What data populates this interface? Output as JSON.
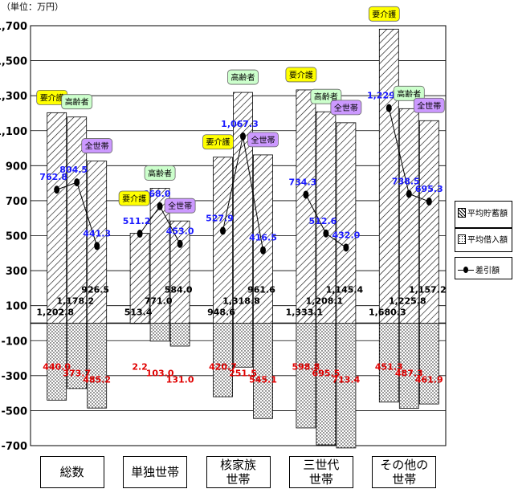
{
  "unit_label": "（単位：万円）",
  "legend": {
    "savings": "平均貯蓄額",
    "debt": "平均借入額",
    "diff": "差引額"
  },
  "chart_data": {
    "type": "bar",
    "ylim": [
      -700,
      1700
    ],
    "yticks": [
      "1,700",
      "1,500",
      "1,300",
      "1,100",
      "900",
      "700",
      "500",
      "300",
      "100",
      "-100",
      "-300",
      "-500",
      "-700"
    ],
    "categories": [
      "総数",
      "単独世帯",
      "核家族世帯",
      "三世代世帯",
      "その他の世帯"
    ],
    "category_lines": [
      [
        "総数"
      ],
      [
        "単独世帯"
      ],
      [
        "核家族",
        "世帯"
      ],
      [
        "三世代",
        "世帯"
      ],
      [
        "その他の",
        "世帯"
      ]
    ],
    "groups": [
      {
        "category": "総数",
        "bars": [
          {
            "label": "要介護",
            "savings": 1202.8,
            "debt": 440.0,
            "diff": 762.8,
            "savings_label": "1,202.8",
            "debt_label": "440.0",
            "diff_label": "762.8"
          },
          {
            "label": "高齢者",
            "savings": 1178.2,
            "debt": 373.7,
            "diff": 804.5,
            "savings_label": "1,178.2",
            "debt_label": "373.7",
            "diff_label": "804.5"
          },
          {
            "label": "全世帯",
            "savings": 926.5,
            "debt": 485.2,
            "diff": 441.3,
            "savings_label": "926.5",
            "debt_label": "485.2",
            "diff_label": "441.3"
          }
        ]
      },
      {
        "category": "単独世帯",
        "bars": [
          {
            "label": "",
            "savings": 513.4,
            "debt": 2.2,
            "diff": 511.2,
            "savings_label": "513.4",
            "debt_label": "2.2",
            "diff_label": "511.2"
          },
          {
            "label": "高齢者",
            "savings": 771.0,
            "debt": 103.0,
            "diff": 668.0,
            "savings_label": "771.0",
            "debt_label": "103.0",
            "diff_label": "668.0"
          },
          {
            "label": "全世帯",
            "savings": 584.0,
            "debt": 131.0,
            "diff": 453.0,
            "savings_label": "584.0",
            "debt_label": "131.0",
            "diff_label": "453.0"
          }
        ]
      },
      {
        "category": "核家族世帯",
        "bars": [
          {
            "label": "要介護",
            "savings": 948.6,
            "debt": 420.7,
            "diff": 527.9,
            "savings_label": "948.6",
            "debt_label": "420.7",
            "diff_label": "527.9"
          },
          {
            "label": "高齢者",
            "savings": 1318.8,
            "debt": 251.5,
            "diff": 1067.3,
            "savings_label": "1,318.8",
            "debt_label": "251.5",
            "diff_label": "1,067.3"
          },
          {
            "label": "全世帯",
            "savings": 961.6,
            "debt": 545.1,
            "diff": 416.5,
            "savings_label": "961.6",
            "debt_label": "545.1",
            "diff_label": "416.5"
          }
        ]
      },
      {
        "category": "三世代世帯",
        "bars": [
          {
            "label": "要介護",
            "savings": 1333.1,
            "debt": 598.8,
            "diff": 734.3,
            "savings_label": "1,333.1",
            "debt_label": "598.8",
            "diff_label": "734.3"
          },
          {
            "label": "高齢者",
            "savings": 1208.1,
            "debt": 695.5,
            "diff": 512.6,
            "savings_label": "1,208.1",
            "debt_label": "695.5",
            "diff_label": "512.6"
          },
          {
            "label": "全世帯",
            "savings": 1145.4,
            "debt": 713.4,
            "diff": 432.0,
            "savings_label": "1,145.4",
            "debt_label": "713.4",
            "diff_label": "432.0"
          }
        ]
      },
      {
        "category": "その他の世帯",
        "bars": [
          {
            "label": "要介護",
            "savings": 1680.3,
            "debt": 451.3,
            "diff": 1229.0,
            "savings_label": "1,680.3",
            "debt_label": "451.3",
            "diff_label": "1,229.0"
          },
          {
            "label": "高齢者",
            "savings": 1225.8,
            "debt": 487.3,
            "diff": 738.5,
            "savings_label": "1,225.8",
            "debt_label": "487.3",
            "diff_label": "738.5"
          },
          {
            "label": "全世帯",
            "savings": 1157.2,
            "debt": 461.9,
            "diff": 695.3,
            "savings_label": "1,157.2",
            "debt_label": "461.9",
            "diff_label": "695.3"
          }
        ]
      }
    ],
    "singles_tag_label": "要介護",
    "colors": {
      "diff_text": "#1a1aff",
      "debt_text": "#e00000",
      "tag_kaigo": "#ffff00",
      "tag_koureisha": "#ccffcc",
      "tag_zensetai": "#cc99ff"
    }
  }
}
